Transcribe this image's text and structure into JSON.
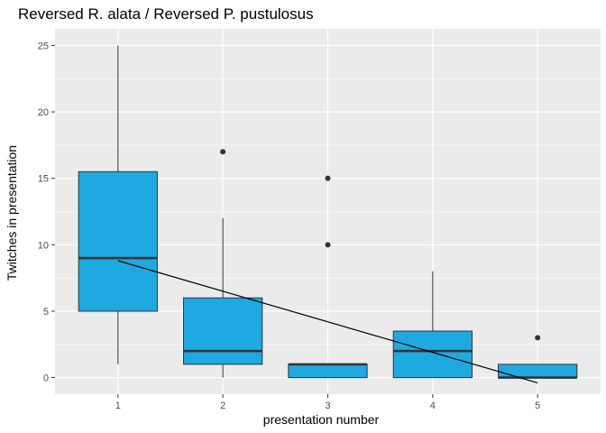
{
  "chart_data": {
    "type": "boxplot",
    "title": "Reversed R. alata / Reversed P. pustulosus",
    "xlabel": "presentation number",
    "ylabel": "Twitches in presentation",
    "categories": [
      "1",
      "2",
      "3",
      "4",
      "5"
    ],
    "ylim": [
      -1.25,
      26.25
    ],
    "y_ticks": [
      0,
      5,
      10,
      15,
      20,
      25
    ],
    "boxes": [
      {
        "category": "1",
        "whisker_low": 1,
        "q1": 5,
        "median": 9,
        "q3": 15.5,
        "whisker_high": 25,
        "outliers": []
      },
      {
        "category": "2",
        "whisker_low": 0,
        "q1": 1,
        "median": 2,
        "q3": 6,
        "whisker_high": 12,
        "outliers": [
          17
        ]
      },
      {
        "category": "3",
        "whisker_low": 0,
        "q1": 0,
        "median": 1,
        "q3": 1,
        "whisker_high": 1,
        "outliers": [
          10,
          15
        ]
      },
      {
        "category": "4",
        "whisker_low": 0,
        "q1": 0,
        "median": 2,
        "q3": 3.5,
        "whisker_high": 8,
        "outliers": []
      },
      {
        "category": "5",
        "whisker_low": 0,
        "q1": 0,
        "median": 0,
        "q3": 1,
        "whisker_high": 1,
        "outliers": [
          3
        ]
      }
    ],
    "trend_line": {
      "x": [
        1,
        5
      ],
      "y": [
        8.8,
        -0.4
      ]
    },
    "grid": true,
    "colors": {
      "box_fill": "#1fa9e1",
      "box_stroke": "#333333",
      "panel_bg": "#ebebeb",
      "grid": "#ffffff",
      "trend_line": "#000000",
      "outlier": "#333333"
    }
  }
}
